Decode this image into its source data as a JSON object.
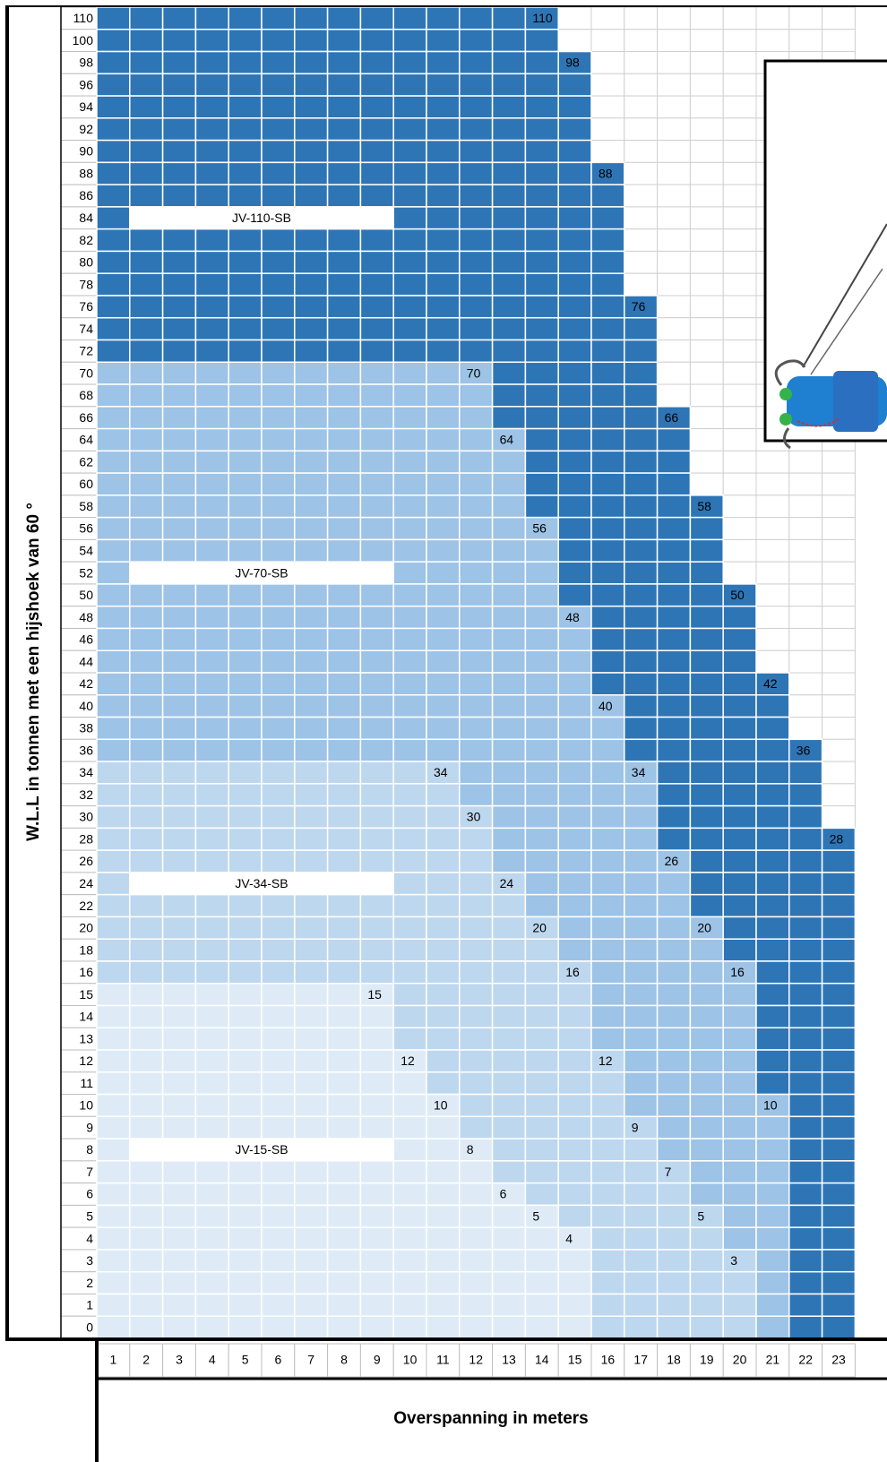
{
  "y_axis_title": "W.L.L in tonnen met een hijshoek van 60 °",
  "x_axis_title": "Overspanning in meters",
  "loads": [
    110,
    100,
    98,
    96,
    94,
    92,
    90,
    88,
    86,
    84,
    82,
    80,
    78,
    76,
    74,
    72,
    70,
    68,
    66,
    64,
    62,
    60,
    58,
    56,
    54,
    52,
    50,
    48,
    46,
    44,
    42,
    40,
    38,
    36,
    34,
    32,
    30,
    28,
    26,
    24,
    22,
    20,
    18,
    16,
    15,
    14,
    13,
    12,
    11,
    10,
    9,
    8,
    7,
    6,
    5,
    4,
    3,
    2,
    1,
    0
  ],
  "spans": [
    1,
    2,
    3,
    4,
    5,
    6,
    7,
    8,
    9,
    10,
    11,
    12,
    13,
    14,
    15,
    16,
    17,
    18,
    19,
    20,
    21,
    22,
    23
  ],
  "beams": [
    {
      "name": "JV-15-SB",
      "color": "#deebf7",
      "capacity": [
        15,
        15,
        15,
        15,
        15,
        15,
        15,
        15,
        15,
        12,
        10,
        8,
        6,
        5,
        4,
        null,
        null,
        null,
        null,
        null,
        null,
        null,
        null
      ]
    },
    {
      "name": "JV-34-SB",
      "color": "#bdd7ee",
      "capacity": [
        34,
        34,
        34,
        34,
        34,
        34,
        34,
        34,
        34,
        34,
        34,
        30,
        24,
        20,
        16,
        12,
        9,
        7,
        5,
        3,
        null,
        null,
        null
      ]
    },
    {
      "name": "JV-70-SB",
      "color": "#9dc3e6",
      "capacity": [
        70,
        70,
        70,
        70,
        70,
        70,
        70,
        70,
        70,
        70,
        70,
        70,
        64,
        56,
        48,
        40,
        34,
        26,
        20,
        16,
        10,
        null,
        null
      ]
    },
    {
      "name": "JV-110-SB",
      "color": "#2e75b6",
      "capacity": [
        110,
        110,
        110,
        110,
        110,
        110,
        110,
        110,
        110,
        110,
        110,
        110,
        110,
        110,
        98,
        88,
        76,
        66,
        58,
        50,
        42,
        36,
        28
      ]
    }
  ]
}
